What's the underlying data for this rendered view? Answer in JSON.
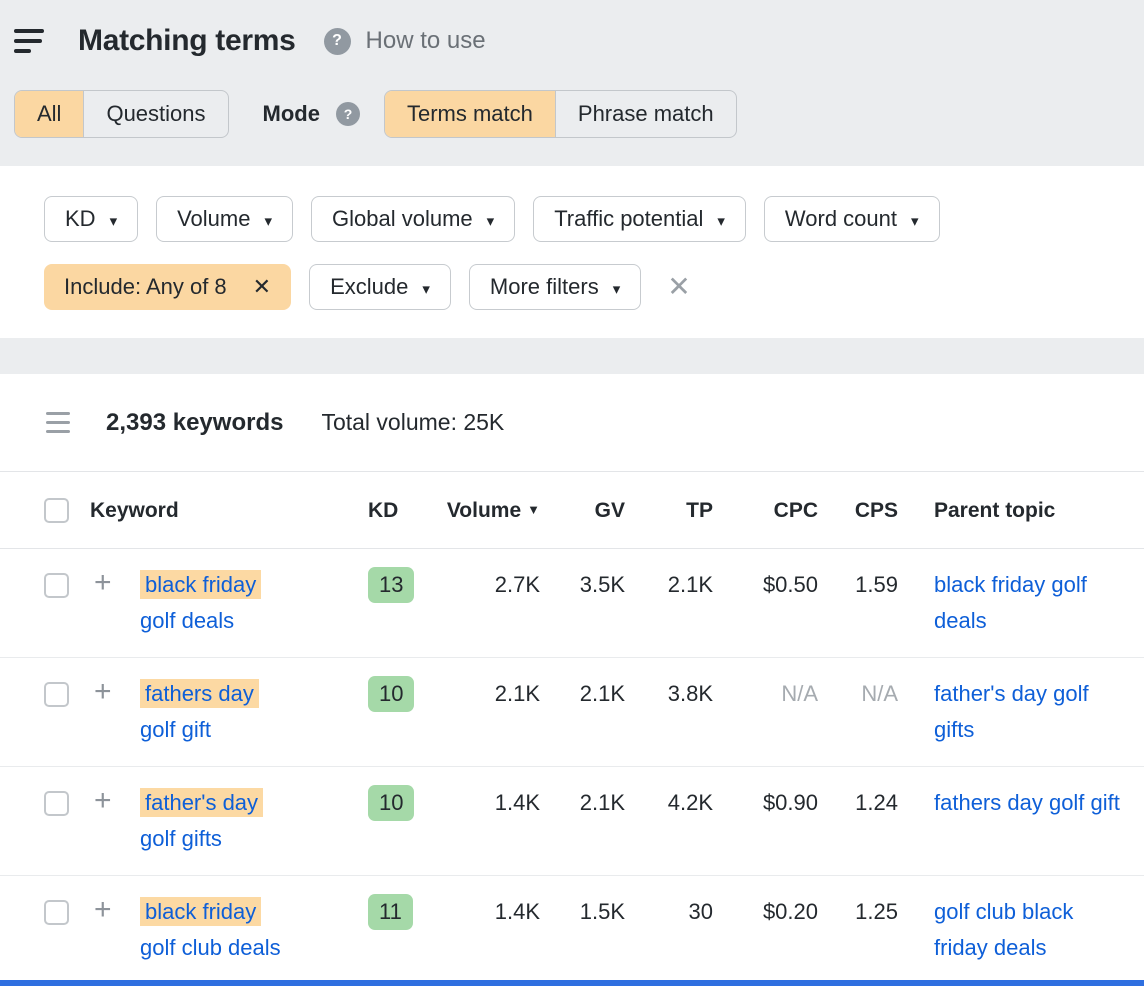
{
  "header": {
    "title": "Matching terms",
    "help_label": "How to use"
  },
  "toolbar": {
    "type_toggle": {
      "all": "All",
      "questions": "Questions"
    },
    "mode_label": "Mode",
    "mode_toggle": {
      "terms": "Terms match",
      "phrase": "Phrase match"
    }
  },
  "filters": {
    "kd": "KD",
    "volume": "Volume",
    "global_volume": "Global volume",
    "traffic_potential": "Traffic potential",
    "word_count": "Word count",
    "include_chip": "Include: Any of 8",
    "exclude": "Exclude",
    "more_filters": "More filters"
  },
  "results": {
    "keyword_count": "2,393 keywords",
    "total_volume": "Total volume: 25K"
  },
  "table": {
    "headers": {
      "keyword": "Keyword",
      "kd": "KD",
      "volume": "Volume",
      "gv": "GV",
      "tp": "TP",
      "cpc": "CPC",
      "cps": "CPS",
      "parent": "Parent topic"
    },
    "rows": [
      {
        "keyword_highlight": "black friday",
        "keyword_rest": "golf deals",
        "kd": "13",
        "volume": "2.7K",
        "gv": "3.5K",
        "tp": "2.1K",
        "cpc": "$0.50",
        "cps": "1.59",
        "parent_topic": "black friday golf deals"
      },
      {
        "keyword_highlight": "fathers day",
        "keyword_rest": "golf gift",
        "kd": "10",
        "volume": "2.1K",
        "gv": "2.1K",
        "tp": "3.8K",
        "cpc": "N/A",
        "cps": "N/A",
        "parent_topic": "father's day golf gifts"
      },
      {
        "keyword_highlight": "father's day",
        "keyword_rest": "golf gifts",
        "kd": "10",
        "volume": "1.4K",
        "gv": "2.1K",
        "tp": "4.2K",
        "cpc": "$0.90",
        "cps": "1.24",
        "parent_topic": "fathers day golf gift"
      },
      {
        "keyword_highlight": "black friday",
        "keyword_rest": "golf club deals",
        "kd": "11",
        "volume": "1.4K",
        "gv": "1.5K",
        "tp": "30",
        "cpc": "$0.20",
        "cps": "1.25",
        "parent_topic": "golf club black friday deals"
      }
    ]
  },
  "colors": {
    "accent_orange": "#fbd7a2",
    "kd_green": "#a5d9a8",
    "link_blue": "#0e5fd8",
    "bottom_bar_blue": "#2f6fe0"
  }
}
